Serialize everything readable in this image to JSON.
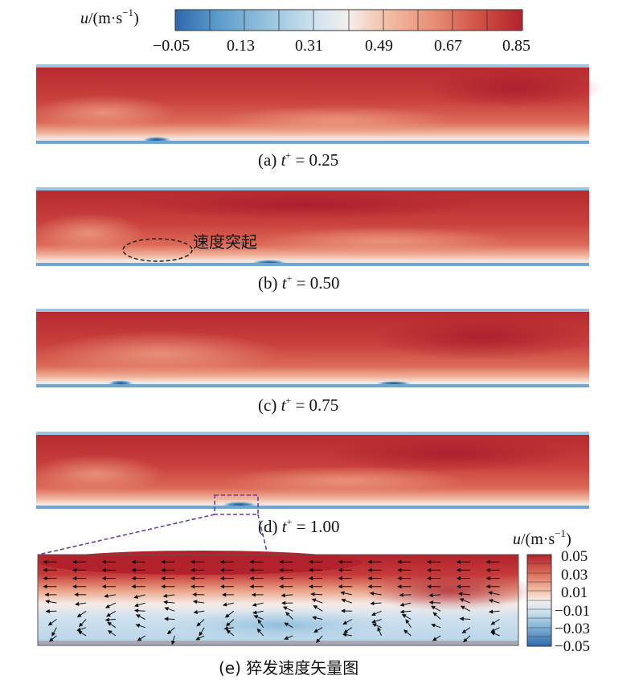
{
  "colorbar_top": {
    "title_var": "u",
    "title_rest": "/(m·s",
    "title_exp": "−1",
    "title_close": ")",
    "ticks": [
      "−0.05",
      "0.13",
      "0.31",
      "0.49",
      "0.67",
      "0.85"
    ]
  },
  "colorbar_inset": {
    "title_var": "u",
    "title_rest": "/(m·s",
    "title_exp": "−1",
    "title_close": ")",
    "ticks": [
      "0.05",
      "0.03",
      "0.01",
      "−0.01",
      "−0.03",
      "−0.05"
    ]
  },
  "panels": [
    {
      "prefix": "(a) ",
      "var": "t",
      "sup": "+",
      "suffix": " = 0.25"
    },
    {
      "prefix": "(b) ",
      "var": "t",
      "sup": "+",
      "suffix": " = 0.50"
    },
    {
      "prefix": "(c) ",
      "var": "t",
      "sup": "+",
      "suffix": " = 0.75"
    },
    {
      "prefix": "(d) ",
      "var": "t",
      "sup": "+",
      "suffix": " = 1.00"
    }
  ],
  "annotation": "速度突起",
  "inset_caption": "(e) 猝发速度矢量图",
  "colors": {
    "map": [
      "#2f67ad",
      "#5b9bcb",
      "#9cc6e0",
      "#d6e6f0",
      "#f3efed",
      "#f4c2aa",
      "#e68c72",
      "#cf4f43",
      "#b2222d"
    ],
    "dash": "#6a3fa0"
  },
  "chart_data": {
    "type": "heatmap",
    "colorbar_range": [
      -0.05,
      0.85
    ],
    "colorbar_ticks": [
      -0.05,
      0.13,
      0.31,
      0.49,
      0.67,
      0.85
    ],
    "inset_colorbar_range": [
      -0.05,
      0.05
    ],
    "inset_colorbar_ticks": [
      0.05,
      0.03,
      0.01,
      -0.01,
      -0.03,
      -0.05
    ],
    "panels": [
      "0.25",
      "0.50",
      "0.75",
      "1.00"
    ]
  }
}
